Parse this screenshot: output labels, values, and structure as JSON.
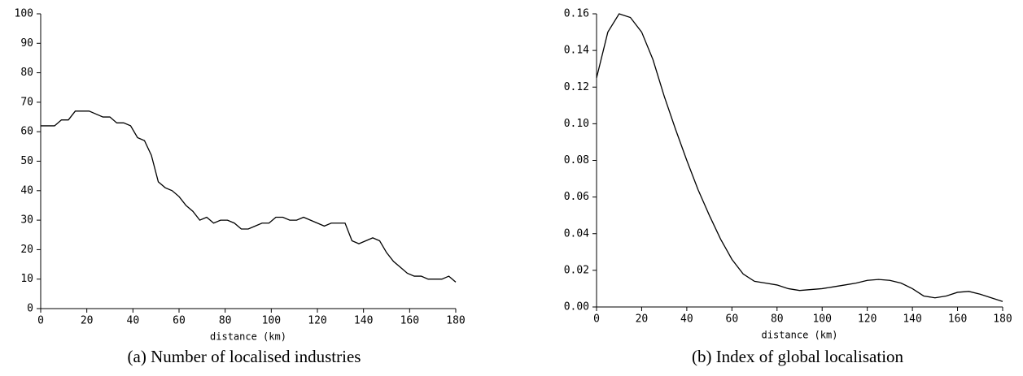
{
  "chart_data": [
    {
      "type": "line",
      "caption": "(a) Number of localised industries",
      "x_label": "distance (km)",
      "x": [
        0,
        3,
        6,
        9,
        12,
        15,
        18,
        21,
        24,
        27,
        30,
        33,
        36,
        39,
        42,
        45,
        48,
        51,
        54,
        57,
        60,
        63,
        66,
        69,
        72,
        75,
        78,
        81,
        84,
        87,
        90,
        93,
        96,
        99,
        102,
        105,
        108,
        111,
        114,
        117,
        120,
        123,
        126,
        129,
        132,
        135,
        138,
        141,
        144,
        147,
        150,
        153,
        156,
        159,
        162,
        165,
        168,
        171,
        174,
        177,
        180
      ],
      "series": [
        {
          "color": "#000000",
          "values": [
            62,
            62,
            62,
            64,
            64,
            67,
            67,
            67,
            66,
            65,
            65,
            63,
            63,
            62,
            58,
            57,
            52,
            43,
            41,
            40,
            38,
            35,
            33,
            30,
            31,
            29,
            30,
            30,
            29,
            27,
            27,
            28,
            29,
            29,
            31,
            31,
            30,
            30,
            31,
            30,
            29,
            28,
            29,
            29,
            29,
            23,
            22,
            23,
            24,
            23,
            19,
            16,
            14,
            12,
            11,
            11,
            10,
            10,
            10,
            11,
            9
          ]
        }
      ],
      "xlim": [
        0,
        180
      ],
      "xticks": [
        0,
        20,
        40,
        60,
        80,
        100,
        120,
        140,
        160,
        180
      ],
      "ylim": [
        0,
        100
      ],
      "yticks": [
        0,
        10,
        20,
        30,
        40,
        50,
        60,
        70,
        80,
        90,
        100
      ]
    },
    {
      "type": "line",
      "caption": "(b) Index of global localisation",
      "x_label": "distance (km)",
      "x": [
        0,
        5,
        10,
        15,
        20,
        25,
        30,
        35,
        40,
        45,
        50,
        55,
        60,
        65,
        70,
        75,
        80,
        85,
        90,
        95,
        100,
        105,
        110,
        115,
        120,
        125,
        130,
        135,
        140,
        145,
        150,
        155,
        160,
        165,
        170,
        175,
        180
      ],
      "series": [
        {
          "color": "#000000",
          "values": [
            0.125,
            0.15,
            0.16,
            0.158,
            0.15,
            0.135,
            0.115,
            0.097,
            0.08,
            0.064,
            0.05,
            0.037,
            0.026,
            0.018,
            0.014,
            0.013,
            0.012,
            0.01,
            0.009,
            0.0095,
            0.01,
            0.011,
            0.012,
            0.013,
            0.0145,
            0.015,
            0.0145,
            0.013,
            0.01,
            0.006,
            0.005,
            0.006,
            0.008,
            0.0085,
            0.007,
            0.005,
            0.003
          ]
        }
      ],
      "xlim": [
        0,
        180
      ],
      "xticks": [
        0,
        20,
        40,
        60,
        80,
        100,
        120,
        140,
        160,
        180
      ],
      "ylim": [
        0,
        0.16
      ],
      "yticks": [
        {
          "value": 0,
          "label": "0.00"
        },
        {
          "value": 0.02,
          "label": "0.02"
        },
        {
          "value": 0.04,
          "label": "0.04"
        },
        {
          "value": 0.06,
          "label": "0.06"
        },
        {
          "value": 0.08,
          "label": "0.08"
        },
        {
          "value": 0.1,
          "label": "0.10"
        },
        {
          "value": 0.12,
          "label": "0.12"
        },
        {
          "value": 0.14,
          "label": "0.14"
        },
        {
          "value": 0.16,
          "label": "0.16"
        }
      ]
    }
  ]
}
